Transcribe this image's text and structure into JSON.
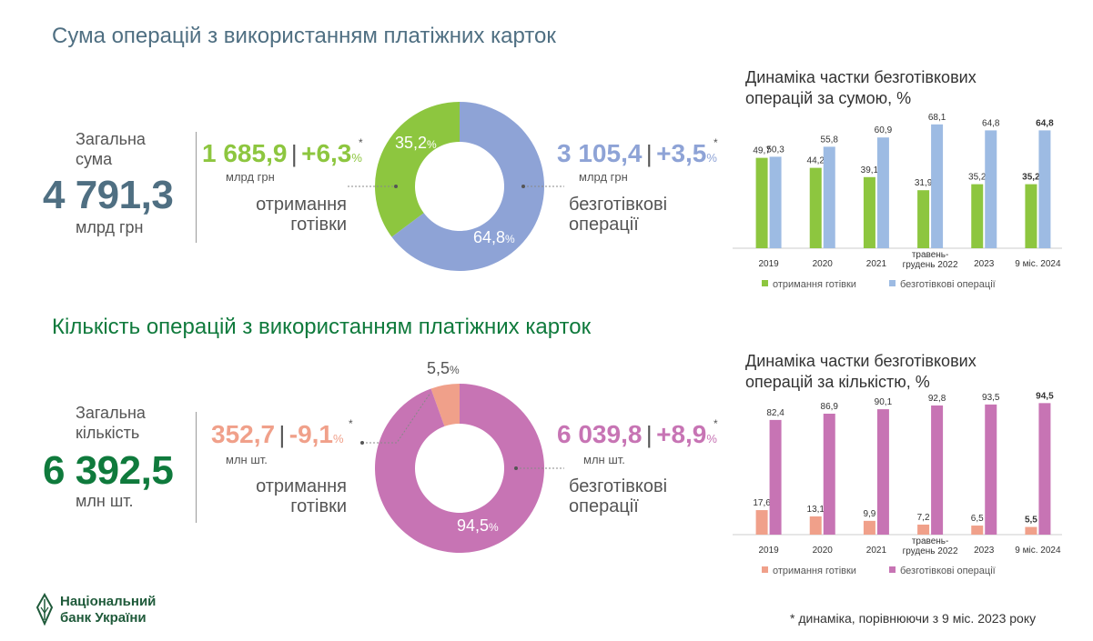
{
  "colors": {
    "green": "#8dc63f",
    "blue": "#8ea3d6",
    "blue_bar": "#9dbbe3",
    "salmon": "#f0a08a",
    "pink": "#c774b4",
    "dark_blue_text": "#4f6f82",
    "dark_green_text": "#0f7a3c"
  },
  "section1": {
    "title": "Сума операцій з використанням платіжних карток",
    "total_label": "Загальна сума",
    "total_value": "4 791,3",
    "total_unit": "млрд грн",
    "cash": {
      "value": "1 685,9",
      "change": "+6,3",
      "pct_sign": "%",
      "star": "*",
      "unit": "млрд грн",
      "label_line1": "отримання",
      "label_line2": "готівки",
      "share": "35,2",
      "share_pct": 35.2
    },
    "cashless": {
      "value": "3 105,4",
      "change": "+3,5",
      "pct_sign": "%",
      "star": "*",
      "unit": "млрд грн",
      "label_line1": "безготівкові",
      "label_line2": "операції",
      "share": "64,8",
      "share_pct": 64.8
    }
  },
  "section2": {
    "title": "Кількість операцій з використанням платіжних карток",
    "total_label": "Загальна кількість",
    "total_value": "6 392,5",
    "total_unit": "млн шт.",
    "cash": {
      "value": "352,7",
      "change": "-9,1",
      "pct_sign": "%",
      "star": "*",
      "unit": "млн шт.",
      "label_line1": "отримання",
      "label_line2": "готівки",
      "share": "5,5",
      "share_pct": 5.5
    },
    "cashless": {
      "value": "6 039,8",
      "change": "+8,9",
      "pct_sign": "%",
      "star": "*",
      "unit": "млн шт.",
      "label_line1": "безготівкові",
      "label_line2": "операції",
      "share": "94,5",
      "share_pct": 94.5
    }
  },
  "chart_data": [
    {
      "type": "bar",
      "title": "Динаміка частки безготівкових операцій за сумою, %",
      "categories": [
        "2019",
        "2020",
        "2021",
        "травень-грудень 2022",
        "2023",
        "9 міс. 2024"
      ],
      "category_lines": [
        [
          "2019"
        ],
        [
          "2020"
        ],
        [
          "2021"
        ],
        [
          "травень-",
          "грудень 2022"
        ],
        [
          "2023"
        ],
        [
          "9 міс. 2024"
        ]
      ],
      "series": [
        {
          "name": "отримання готівки",
          "values": [
            49.7,
            44.2,
            39.1,
            31.9,
            35.2,
            35.2
          ],
          "labels": [
            "49,7",
            "44,2",
            "39,1",
            "31,9",
            "35,2",
            "35,2"
          ],
          "color": "#8dc63f"
        },
        {
          "name": "безготівкові операції",
          "values": [
            50.3,
            55.8,
            60.9,
            68.1,
            64.8,
            64.8
          ],
          "labels": [
            "50,3",
            "55,8",
            "60,9",
            "68,1",
            "64,8",
            "64,8"
          ],
          "color": "#9dbbe3"
        }
      ],
      "ylim": [
        0,
        75
      ],
      "bold_last": true
    },
    {
      "type": "bar",
      "title": "Динаміка частки безготівкових операцій за кількістю, %",
      "categories": [
        "2019",
        "2020",
        "2021",
        "травень-грудень 2022",
        "2023",
        "9 міс. 2024"
      ],
      "category_lines": [
        [
          "2019"
        ],
        [
          "2020"
        ],
        [
          "2021"
        ],
        [
          "травень-",
          "грудень 2022"
        ],
        [
          "2023"
        ],
        [
          "9 міс. 2024"
        ]
      ],
      "series": [
        {
          "name": "отримання готівки",
          "values": [
            17.6,
            13.1,
            9.9,
            7.2,
            6.5,
            5.5
          ],
          "labels": [
            "17,6",
            "13,1",
            "9,9",
            "7,2",
            "6,5",
            "5,5"
          ],
          "color": "#f0a08a"
        },
        {
          "name": "безготівкові операції",
          "values": [
            82.4,
            86.9,
            90.1,
            92.8,
            93.5,
            94.5
          ],
          "labels": [
            "82,4",
            "86,9",
            "90,1",
            "92,8",
            "93,5",
            "94,5"
          ],
          "color": "#c774b4"
        }
      ],
      "ylim": [
        0,
        98
      ],
      "bold_last": true
    }
  ],
  "logo": {
    "line1": "Національний",
    "line2": "банк України"
  },
  "footnote": "* динаміка, порівнюючи з 9 міс. 2023 року"
}
